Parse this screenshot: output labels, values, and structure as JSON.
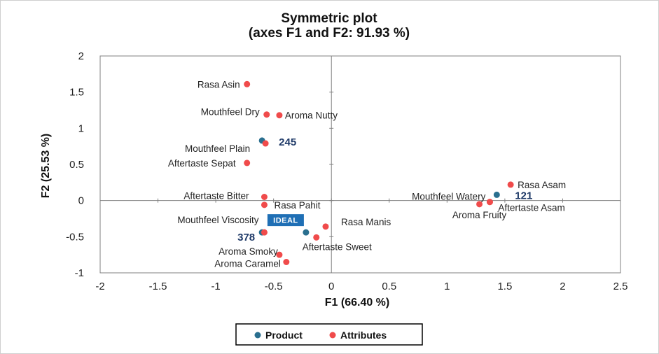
{
  "colors": {
    "product": "#2a6f8f",
    "attribute": "#f04b4b",
    "ideal_box": "#1f6fb5",
    "axis": "#808080"
  },
  "chart_data": {
    "type": "scatter",
    "title": "Symmetric plot",
    "subtitle": "(axes F1 and F2: 91.93 %)",
    "xlabel": "F1 (66.40 %)",
    "ylabel": "F2 (25.53 %)",
    "xlim": [
      -2,
      2.5
    ],
    "ylim": [
      -1,
      2
    ],
    "xticks": [
      "-2",
      "-1.5",
      "-1",
      "-0.5",
      "0",
      "0.5",
      "1",
      "1.5",
      "2",
      "2.5"
    ],
    "yticks": [
      "2",
      "1.5",
      "1",
      "0.5",
      "0",
      "-0.5",
      "-1"
    ],
    "grid": false,
    "legend_position": "bottom",
    "legend": [
      "Product",
      "Attributes"
    ],
    "series": [
      {
        "name": "Product",
        "points": [
          {
            "label": "245",
            "x": -0.6,
            "y": 0.83
          },
          {
            "label": "121",
            "x": 1.43,
            "y": 0.08
          },
          {
            "label": "378",
            "x": -0.6,
            "y": -0.44
          },
          {
            "label": "IDEAL",
            "x": -0.22,
            "y": -0.44
          }
        ]
      },
      {
        "name": "Attributes",
        "points": [
          {
            "label": "Rasa Asin",
            "x": -0.73,
            "y": 1.61
          },
          {
            "label": "Mouthfeel Dry",
            "x": -0.56,
            "y": 1.19
          },
          {
            "label": "Aroma Nutty",
            "x": -0.45,
            "y": 1.18
          },
          {
            "label": "Mouthfeel Plain",
            "x": -0.57,
            "y": 0.79
          },
          {
            "label": "Aftertaste Sepat",
            "x": -0.73,
            "y": 0.52
          },
          {
            "label": "Aftertaste Bitter",
            "x": -0.58,
            "y": 0.05
          },
          {
            "label": "Rasa Pahit",
            "x": -0.58,
            "y": -0.06
          },
          {
            "label": "Mouthfeel Viscosity",
            "x": -0.58,
            "y": -0.44
          },
          {
            "label": "Rasa Manis",
            "x": -0.05,
            "y": -0.36
          },
          {
            "label": "Aftertaste Sweet",
            "x": -0.13,
            "y": -0.51
          },
          {
            "label": "Aroma Smoky",
            "x": -0.45,
            "y": -0.75
          },
          {
            "label": "Aroma Caramel",
            "x": -0.39,
            "y": -0.85
          },
          {
            "label": "Rasa Asam",
            "x": 1.55,
            "y": 0.22
          },
          {
            "label": "Mouthfeel Watery",
            "x": 1.37,
            "y": -0.02
          },
          {
            "label": "Aftertaste Asam",
            "x": 1.37,
            "y": -0.02
          },
          {
            "label": "Aroma Fruity",
            "x": 1.28,
            "y": -0.05
          }
        ]
      }
    ]
  }
}
